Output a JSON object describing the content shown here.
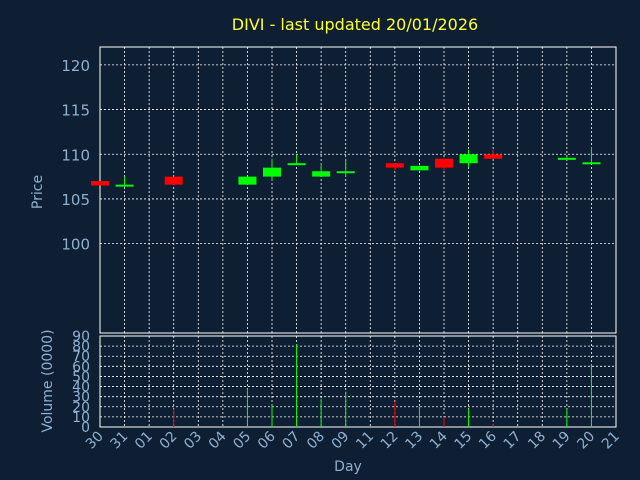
{
  "chart_data": [
    {
      "type": "candlestick",
      "title": "DIVI - last updated 20/01/2026",
      "ylabel": "Price",
      "ylim": [
        90,
        122
      ],
      "yticks": [
        100,
        105,
        110,
        115,
        120
      ],
      "grid": true,
      "up_color": "#00ff00",
      "down_color": "#ff0000",
      "days": [
        "30",
        "31",
        "01",
        "02",
        "03",
        "04",
        "05",
        "06",
        "07",
        "08",
        "09",
        "11",
        "12",
        "13",
        "14",
        "15",
        "16",
        "17",
        "18",
        "19",
        "20",
        "21"
      ],
      "candles": [
        {
          "day": "30",
          "open": 107.0,
          "high": 107.0,
          "low": 106.5,
          "close": 106.5
        },
        {
          "day": "31",
          "open": 106.5,
          "high": 107.5,
          "low": 106.5,
          "close": 106.6
        },
        {
          "day": "02",
          "open": 107.5,
          "high": 107.5,
          "low": 106.6,
          "close": 106.6
        },
        {
          "day": "05",
          "open": 106.6,
          "high": 107.5,
          "low": 106.6,
          "close": 107.5
        },
        {
          "day": "06",
          "open": 107.5,
          "high": 109.5,
          "low": 107.0,
          "close": 108.5
        },
        {
          "day": "07",
          "open": 108.9,
          "high": 110.0,
          "low": 108.9,
          "close": 109.0
        },
        {
          "day": "08",
          "open": 107.5,
          "high": 109.0,
          "low": 107.5,
          "close": 108.1
        },
        {
          "day": "09",
          "open": 108.0,
          "high": 109.5,
          "low": 107.5,
          "close": 108.1
        },
        {
          "day": "12",
          "open": 109.0,
          "high": 109.0,
          "low": 108.2,
          "close": 108.5
        },
        {
          "day": "13",
          "open": 108.2,
          "high": 108.7,
          "low": 108.2,
          "close": 108.7
        },
        {
          "day": "14",
          "open": 109.5,
          "high": 109.5,
          "low": 108.2,
          "close": 108.5
        },
        {
          "day": "15",
          "open": 109.0,
          "high": 110.5,
          "low": 108.5,
          "close": 110.0
        },
        {
          "day": "16",
          "open": 110.0,
          "high": 110.5,
          "low": 109.5,
          "close": 109.5
        },
        {
          "day": "19",
          "open": 109.5,
          "high": 109.8,
          "low": 109.4,
          "close": 109.6
        },
        {
          "day": "20",
          "open": 109.0,
          "high": 110.8,
          "low": 109.0,
          "close": 109.1
        }
      ]
    },
    {
      "type": "bar",
      "ylabel": "Volume (0000)",
      "xlabel": "Day",
      "ylim": [
        0,
        90
      ],
      "yticks": [
        0,
        10,
        20,
        30,
        40,
        50,
        60,
        70,
        80,
        90
      ],
      "volumes": [
        {
          "day": "02",
          "value": 18,
          "direction": "down"
        },
        {
          "day": "05",
          "value": 38,
          "direction": "up"
        },
        {
          "day": "06",
          "value": 22,
          "direction": "up"
        },
        {
          "day": "07",
          "value": 82,
          "direction": "up"
        },
        {
          "day": "08",
          "value": 28,
          "direction": "up"
        },
        {
          "day": "09",
          "value": 35,
          "direction": "up"
        },
        {
          "day": "12",
          "value": 25,
          "direction": "down"
        },
        {
          "day": "13",
          "value": 20,
          "direction": "up"
        },
        {
          "day": "14",
          "value": 10,
          "direction": "down"
        },
        {
          "day": "15",
          "value": 18,
          "direction": "up"
        },
        {
          "day": "16",
          "value": 3,
          "direction": "down"
        },
        {
          "day": "19",
          "value": 18,
          "direction": "up"
        },
        {
          "day": "20",
          "value": 62,
          "direction": "up"
        }
      ]
    }
  ]
}
